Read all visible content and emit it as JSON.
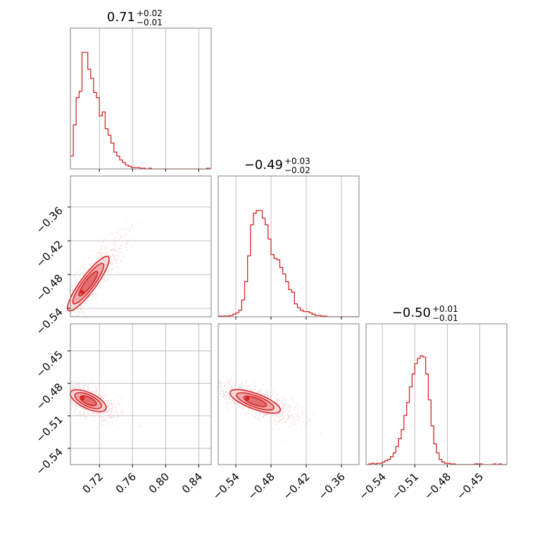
{
  "colors": {
    "accent": "#d62728",
    "fill_dark": "#e06668",
    "fill_mid": "#eea3a4",
    "fill_light": "#f8d5d6",
    "grid": "#b0b0b0"
  },
  "chart_data": [
    {
      "type": "histogram",
      "panel": "row1-col1",
      "title": {
        "main": "0.71",
        "sup": "+0.02",
        "sub": "−0.01"
      },
      "xlim": [
        0.685,
        0.855
      ],
      "bins": [
        0.685,
        0.6885,
        0.692,
        0.6955,
        0.699,
        0.7025,
        0.706,
        0.7095,
        0.713,
        0.7165,
        0.72,
        0.7235,
        0.727,
        0.7305,
        0.734,
        0.7375,
        0.741,
        0.7445,
        0.748,
        0.7515,
        0.755,
        0.7585,
        0.762,
        0.7655,
        0.769,
        0.7725,
        0.776,
        0.7795,
        0.783,
        0.7865,
        0.79,
        0.7935,
        0.797,
        0.8005,
        0.804,
        0.8075,
        0.811,
        0.8145,
        0.818,
        0.8215,
        0.825,
        0.8285,
        0.832,
        0.8355,
        0.839,
        0.8425,
        0.846,
        0.8495,
        0.853,
        0.855
      ],
      "counts": [
        0.1,
        0.34,
        0.55,
        0.6,
        0.9,
        0.9,
        0.77,
        0.7,
        0.59,
        0.55,
        0.41,
        0.44,
        0.31,
        0.26,
        0.2,
        0.13,
        0.1,
        0.07,
        0.05,
        0.03,
        0.02,
        0.01,
        0.01,
        0.01,
        0.005,
        0.005,
        0,
        0.005,
        0,
        0,
        0,
        0,
        0,
        0,
        0,
        0,
        0,
        0,
        0,
        0,
        0,
        0,
        0,
        0,
        0,
        0,
        0,
        0.005,
        0
      ],
      "x_ticks": [
        0.72,
        0.76,
        0.8,
        0.84
      ],
      "grid": true
    },
    {
      "type": "contour-scatter",
      "panel": "row2-col1",
      "xlim": [
        0.685,
        0.855
      ],
      "ylim": [
        -0.555,
        -0.305
      ],
      "y_ticks": [
        -0.36,
        -0.42,
        -0.48,
        -0.54
      ],
      "y_tick_labels": [
        "−0.36",
        "−0.42",
        "−0.48",
        "−0.54"
      ],
      "trend": {
        "x0": 0.688,
        "y0": -0.533,
        "x1": 0.75,
        "y1": -0.41
      },
      "grid": true
    },
    {
      "type": "histogram",
      "panel": "row2-col2",
      "title": {
        "main": "−0.49",
        "sup": "+0.03",
        "sub": "−0.02"
      },
      "xlim": [
        -0.57,
        -0.33
      ],
      "bins": [
        -0.57,
        -0.565,
        -0.56,
        -0.555,
        -0.55,
        -0.545,
        -0.54,
        -0.535,
        -0.53,
        -0.525,
        -0.52,
        -0.515,
        -0.51,
        -0.505,
        -0.5,
        -0.495,
        -0.49,
        -0.485,
        -0.48,
        -0.475,
        -0.47,
        -0.465,
        -0.46,
        -0.455,
        -0.45,
        -0.445,
        -0.44,
        -0.435,
        -0.43,
        -0.425,
        -0.42,
        -0.415,
        -0.41,
        -0.405,
        -0.4,
        -0.395,
        -0.39,
        -0.385,
        -0.38,
        -0.375,
        -0.37,
        -0.365,
        -0.36,
        -0.355,
        -0.35,
        -0.345,
        -0.34,
        -0.335,
        -0.33
      ],
      "counts": [
        0.005,
        0.005,
        0.005,
        0.005,
        0.01,
        0.02,
        0.03,
        0.05,
        0.13,
        0.27,
        0.47,
        0.71,
        0.8,
        0.82,
        0.82,
        0.76,
        0.71,
        0.6,
        0.48,
        0.45,
        0.44,
        0.38,
        0.33,
        0.27,
        0.21,
        0.19,
        0.1,
        0.07,
        0.05,
        0.04,
        0.04,
        0.03,
        0.02,
        0.01,
        0.01,
        0.005,
        0.005,
        0,
        0,
        0,
        0,
        0,
        0,
        0,
        0,
        0,
        0,
        0
      ],
      "x_ticks": [
        -0.54,
        -0.48,
        -0.42,
        -0.36
      ],
      "grid": true
    },
    {
      "type": "contour-scatter",
      "panel": "row3-col1",
      "xlim": [
        0.685,
        0.855
      ],
      "ylim": [
        -0.555,
        -0.425
      ],
      "x_ticks": [
        0.72,
        0.76,
        0.8,
        0.84
      ],
      "x_tick_labels": [
        "0.72",
        "0.76",
        "0.80",
        "0.84"
      ],
      "y_ticks": [
        -0.45,
        -0.48,
        -0.51,
        -0.54
      ],
      "y_tick_labels": [
        "−0.45",
        "−0.48",
        "−0.51",
        "−0.54"
      ],
      "trend": {
        "x0": 0.69,
        "y0": -0.49,
        "x1": 0.745,
        "y1": -0.51
      },
      "grid": true
    },
    {
      "type": "contour-scatter",
      "panel": "row3-col2",
      "xlim": [
        -0.57,
        -0.33
      ],
      "ylim": [
        -0.555,
        -0.425
      ],
      "x_ticks": [
        -0.54,
        -0.48,
        -0.42,
        -0.36
      ],
      "x_tick_labels": [
        "−0.54",
        "−0.48",
        "−0.42",
        "−0.36"
      ],
      "trend": {
        "x0": -0.54,
        "y0": -0.49,
        "x1": -0.43,
        "y1": -0.512
      },
      "grid": true
    },
    {
      "type": "histogram",
      "panel": "row3-col3",
      "title": {
        "main": "−0.50",
        "sup": "+0.01",
        "sub": "−0.01"
      },
      "xlim": [
        -0.555,
        -0.425
      ],
      "bins": [
        -0.555,
        -0.5525,
        -0.55,
        -0.5475,
        -0.545,
        -0.5425,
        -0.54,
        -0.5375,
        -0.535,
        -0.5325,
        -0.53,
        -0.5275,
        -0.525,
        -0.5225,
        -0.52,
        -0.5175,
        -0.515,
        -0.5125,
        -0.51,
        -0.5075,
        -0.505,
        -0.5025,
        -0.5,
        -0.4975,
        -0.495,
        -0.4925,
        -0.49,
        -0.4875,
        -0.485,
        -0.4825,
        -0.48,
        -0.4775,
        -0.475,
        -0.4725,
        -0.47,
        -0.4675,
        -0.465,
        -0.4625,
        -0.46,
        -0.4575,
        -0.455,
        -0.4525,
        -0.45,
        -0.4475,
        -0.445,
        -0.4425,
        -0.44,
        -0.4375,
        -0.435,
        -0.4325,
        -0.43,
        -0.4275,
        -0.425
      ],
      "counts": [
        0,
        0.005,
        0.01,
        0.005,
        0.01,
        0.01,
        0.02,
        0.03,
        0.04,
        0.06,
        0.09,
        0.14,
        0.2,
        0.27,
        0.38,
        0.48,
        0.6,
        0.7,
        0.78,
        0.82,
        0.84,
        0.83,
        0.7,
        0.5,
        0.3,
        0.16,
        0.09,
        0.04,
        0.02,
        0.01,
        0.01,
        0.005,
        0.005,
        0,
        0,
        0,
        0,
        0,
        0,
        0,
        0.005,
        0.005,
        0.005,
        0,
        0,
        0,
        0,
        0.005,
        0,
        0.005,
        0,
        0
      ],
      "x_ticks": [
        -0.54,
        -0.51,
        -0.48,
        -0.45
      ],
      "x_tick_labels": [
        "−0.54",
        "−0.51",
        "−0.48",
        "−0.45"
      ],
      "grid": true
    }
  ]
}
